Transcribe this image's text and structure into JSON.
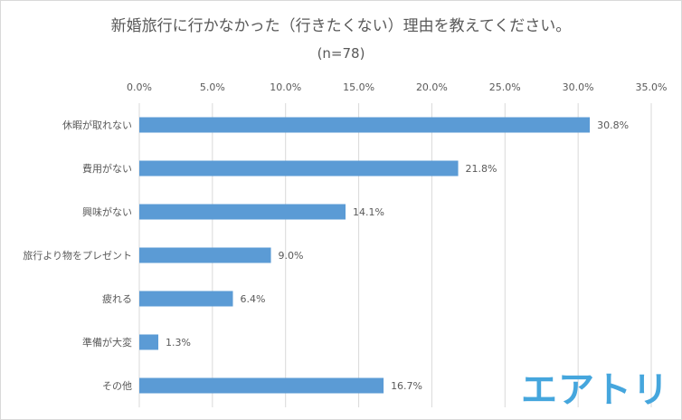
{
  "title": "新婚旅行に行かなかった（行きたくない）理由を教えてください。",
  "subtitle": "(n=78)",
  "logo_text": "エアトリ",
  "colors": {
    "bar": "#5b9bd5",
    "grid": "#d9d9d9",
    "text": "#595959",
    "logo": "#45a6dd"
  },
  "chart_data": {
    "type": "bar",
    "orientation": "horizontal",
    "categories": [
      "休暇が取れない",
      "費用がない",
      "興味がない",
      "旅行より物をプレゼント",
      "疲れる",
      "準備が大変",
      "その他"
    ],
    "values": [
      30.8,
      21.8,
      14.1,
      9.0,
      6.4,
      1.3,
      16.7
    ],
    "data_labels": [
      "30.8%",
      "21.8%",
      "14.1%",
      "9.0%",
      "6.4%",
      "1.3%",
      "16.7%"
    ],
    "xlim": [
      0,
      35
    ],
    "xticks": [
      0,
      5,
      10,
      15,
      20,
      25,
      30,
      35
    ],
    "xtick_labels": [
      "0.0%",
      "5.0%",
      "10.0%",
      "15.0%",
      "20.0%",
      "25.0%",
      "30.0%",
      "35.0%"
    ],
    "x_axis_position": "top",
    "grid": true,
    "legend": false
  }
}
